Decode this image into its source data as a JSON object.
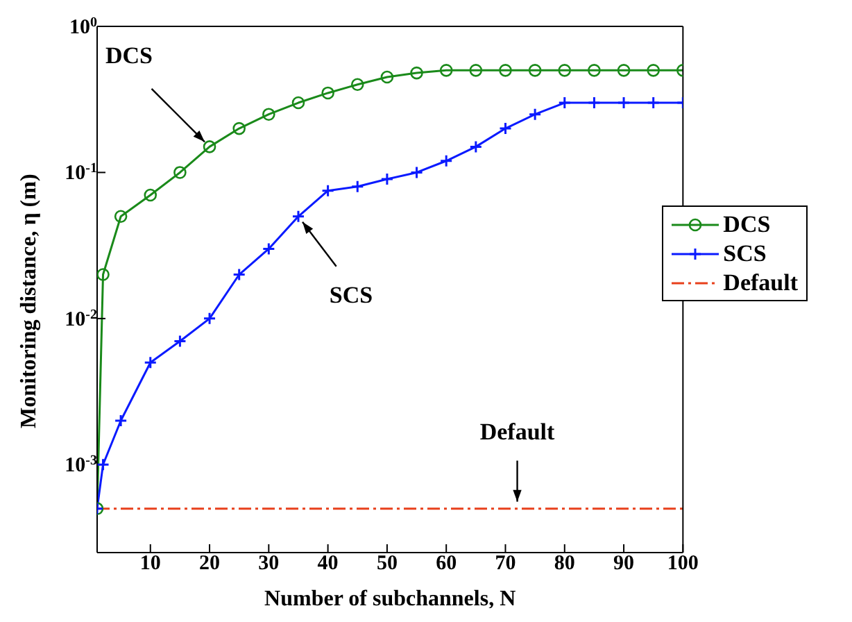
{
  "chart_data": {
    "type": "line",
    "xlabel": "Number of subchannels, N",
    "ylabel": "Monitoring distance, η (m)",
    "x": [
      1,
      2,
      5,
      10,
      15,
      20,
      25,
      30,
      35,
      40,
      45,
      50,
      55,
      60,
      65,
      70,
      75,
      80,
      85,
      90,
      95,
      100
    ],
    "series": [
      {
        "name": "DCS",
        "color": "#1a8a1a",
        "marker": "circle",
        "values": [
          0.0005,
          0.02,
          0.05,
          0.07,
          0.1,
          0.15,
          0.2,
          0.25,
          0.3,
          0.35,
          0.4,
          0.45,
          0.48,
          0.5,
          0.5,
          0.5,
          0.5,
          0.5,
          0.5,
          0.5,
          0.5,
          0.5
        ]
      },
      {
        "name": "SCS",
        "color": "#0a1aff",
        "marker": "cross",
        "values": [
          0.0005,
          0.001,
          0.002,
          0.005,
          0.007,
          0.01,
          0.02,
          0.03,
          0.05,
          0.075,
          0.08,
          0.09,
          0.1,
          0.12,
          0.15,
          0.2,
          0.25,
          0.3,
          0.3,
          0.3,
          0.3,
          0.3
        ]
      },
      {
        "name": "Default",
        "color": "#e8401c",
        "marker": "none",
        "line_style": "dashed",
        "values": [
          0.0005,
          0.0005,
          0.0005,
          0.0005,
          0.0005,
          0.0005,
          0.0005,
          0.0005,
          0.0005,
          0.0005,
          0.0005,
          0.0005,
          0.0005,
          0.0005,
          0.0005,
          0.0005,
          0.0005,
          0.0005,
          0.0005,
          0.0005,
          0.0005,
          0.0005
        ]
      }
    ],
    "xlim": [
      1,
      100
    ],
    "xticks": [
      10,
      20,
      30,
      40,
      50,
      60,
      70,
      80,
      90,
      100
    ],
    "log": "y",
    "ylim": [
      0.00025,
      1
    ],
    "yticks": [
      {
        "value": 0.001,
        "label": "10$^{-3}$"
      },
      {
        "value": 0.01,
        "label": "10$^{-2}$"
      },
      {
        "value": 0.1,
        "label": "10$^{-1}$"
      },
      {
        "value": 1,
        "label": "10$^{0}$"
      }
    ],
    "grid": false,
    "legend": "right",
    "line_style": "solid",
    "annotations": [
      {
        "text": "DCS",
        "x": 20,
        "y": 0.15
      },
      {
        "text": "SCS",
        "x": 35,
        "y": 0.05
      },
      {
        "text": "Default",
        "x": 72,
        "y": 0.0005
      }
    ]
  }
}
